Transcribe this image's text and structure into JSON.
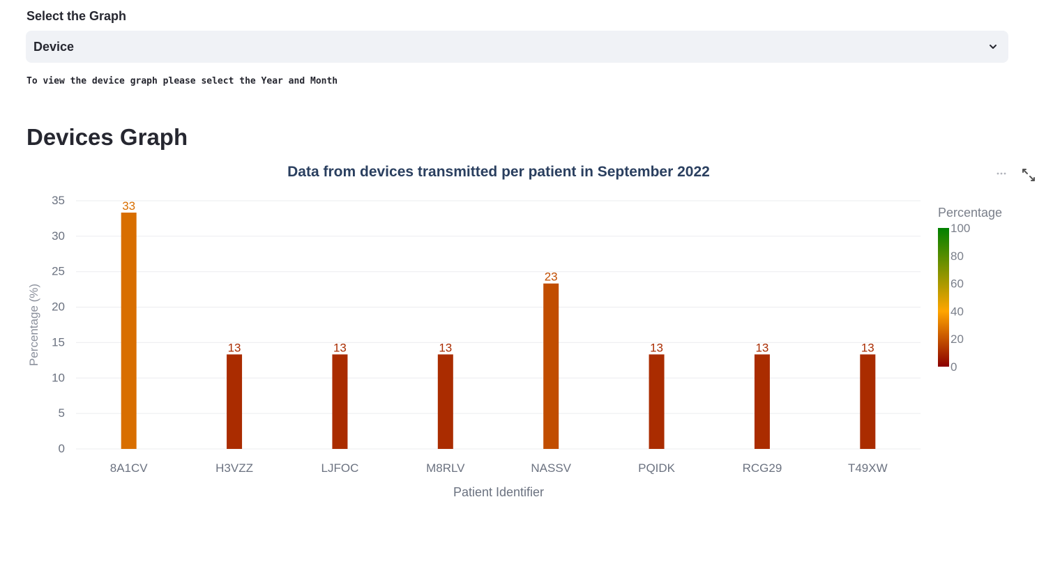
{
  "select": {
    "label": "Select the Graph",
    "value": "Device"
  },
  "hint": "To view the device graph please select the Year and Month",
  "section_title": "Devices Graph",
  "icons": {
    "more": "more-horizontal-icon",
    "expand": "fullscreen-expand-icon",
    "chevron": "chevron-down-icon"
  },
  "chart_data": {
    "type": "bar",
    "title": "Data from devices transmitted per patient in September 2022",
    "xlabel": "Patient Identifier",
    "ylabel": "Percentage (%)",
    "categories": [
      "8A1CV",
      "H3VZZ",
      "LJFOC",
      "M8RLV",
      "NASSV",
      "PQIDK",
      "RCG29",
      "T49XW"
    ],
    "values": [
      33.33,
      13.33,
      13.33,
      13.33,
      23.33,
      13.33,
      13.33,
      13.33
    ],
    "data_labels": [
      "33",
      "13",
      "13",
      "13",
      "23",
      "13",
      "13",
      "13"
    ],
    "ylim": [
      0,
      35
    ],
    "yticks": [
      0,
      5,
      10,
      15,
      20,
      25,
      30,
      35
    ],
    "grid": true,
    "colorbar": {
      "title": "Percentage",
      "ticks": [
        0,
        20,
        40,
        60,
        80,
        100
      ],
      "range": [
        0,
        100
      ],
      "colors": [
        "#8b0000",
        "#ffa500",
        "#008000"
      ]
    }
  }
}
